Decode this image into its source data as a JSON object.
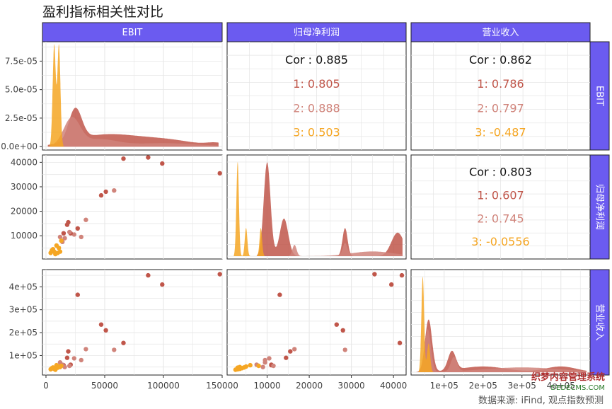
{
  "title": "盈利指标相关性对比",
  "source": "数据来源: iFind, 观点指数预测",
  "watermark": {
    "line1": "织梦内容管理系统",
    "line2": "DEDECMS.COM"
  },
  "colors": {
    "strip_bg": "#6b5bf0",
    "strip_text": "#ffffff",
    "group1": "#c0564a",
    "group2": "#d0847b",
    "group3": "#f5a623",
    "panel_border": "#222222",
    "grid": "#e6e6e6",
    "cor_text": "#111111"
  },
  "chart_data": {
    "type": "scatter",
    "variables": [
      "EBIT",
      "归母净利润",
      "营业收入"
    ],
    "groups": [
      "1",
      "2",
      "3"
    ],
    "correlations": [
      {
        "row": 0,
        "col": 1,
        "overall": "Cor : 0.885",
        "groups": [
          "1: 0.805",
          "2: 0.888",
          "3: 0.503"
        ]
      },
      {
        "row": 0,
        "col": 2,
        "overall": "Cor : 0.862",
        "groups": [
          "1: 0.786",
          "2: 0.797",
          "3: -0.487"
        ]
      },
      {
        "row": 1,
        "col": 2,
        "overall": "Cor : 0.803",
        "groups": [
          "1: 0.607",
          "2: 0.745",
          "3: -0.0556"
        ]
      }
    ],
    "axes": {
      "EBIT": {
        "range": [
          -3000,
          150000
        ],
        "ticks": [
          0,
          50000,
          100000,
          150000
        ],
        "tick_labels": [
          "0",
          "50000",
          "100000",
          "150000"
        ]
      },
      "归母净利润": {
        "range": [
          500,
          43000
        ],
        "ticks": [
          10000,
          20000,
          30000,
          40000
        ],
        "tick_labels": [
          "10000",
          "20000",
          "30000",
          "40000"
        ]
      },
      "营业收入": {
        "range": [
          15000,
          475000
        ],
        "ticks": [
          100000,
          200000,
          300000,
          400000
        ],
        "tick_labels": [
          "1e+05",
          "2e+05",
          "3e+05",
          "4e+05"
        ]
      },
      "EBIT_density": {
        "range": [
          -3e-06,
          9.2e-05
        ],
        "ticks": [
          0,
          2.5e-05,
          5e-05,
          7.5e-05
        ],
        "tick_labels": [
          "0.0e+00",
          "2.5e-05",
          "5.0e-05",
          "7.5e-05"
        ]
      }
    },
    "points": [
      {
        "g": 1,
        "ebit": 148000,
        "profit": 35500,
        "revenue": 455000
      },
      {
        "g": 1,
        "ebit": 87000,
        "profit": 42000,
        "revenue": 450000
      },
      {
        "g": 1,
        "ebit": 99000,
        "profit": 39500,
        "revenue": 410000
      },
      {
        "g": 1,
        "ebit": 66000,
        "profit": 41500,
        "revenue": 155000
      },
      {
        "g": 1,
        "ebit": 47000,
        "profit": 26500,
        "revenue": 235000
      },
      {
        "g": 1,
        "ebit": 51000,
        "profit": 28000,
        "revenue": 210000
      },
      {
        "g": 1,
        "ebit": 27000,
        "profit": 13000,
        "revenue": 365000
      },
      {
        "g": 2,
        "ebit": 58000,
        "profit": 28500,
        "revenue": 125000
      },
      {
        "g": 2,
        "ebit": 34000,
        "profit": 16500,
        "revenue": 128000
      },
      {
        "g": 1,
        "ebit": 19000,
        "profit": 15500,
        "revenue": 118000
      },
      {
        "g": 1,
        "ebit": 18000,
        "profit": 14500,
        "revenue": 90000
      },
      {
        "g": 2,
        "ebit": 30000,
        "profit": 9500,
        "revenue": 80000
      },
      {
        "g": 2,
        "ebit": 24000,
        "profit": 10500,
        "revenue": 88000
      },
      {
        "g": 1,
        "ebit": 21000,
        "profit": 11000,
        "revenue": 60000
      },
      {
        "g": 1,
        "ebit": 15000,
        "profit": 11000,
        "revenue": 58000
      },
      {
        "g": 2,
        "ebit": 20000,
        "profit": 11500,
        "revenue": 55000
      },
      {
        "g": 2,
        "ebit": 12000,
        "profit": 9500,
        "revenue": 70000
      },
      {
        "g": 2,
        "ebit": 16000,
        "profit": 9000,
        "revenue": 50000
      },
      {
        "g": 2,
        "ebit": 14000,
        "profit": 7500,
        "revenue": 60000
      },
      {
        "g": 3,
        "ebit": 13000,
        "profit": 8000,
        "revenue": 55000
      },
      {
        "g": 3,
        "ebit": 9000,
        "profit": 6000,
        "revenue": 58000
      },
      {
        "g": 3,
        "ebit": 11000,
        "profit": 5000,
        "revenue": 52000
      },
      {
        "g": 3,
        "ebit": 6000,
        "profit": 4500,
        "revenue": 48000
      },
      {
        "g": 3,
        "ebit": 7000,
        "profit": 3500,
        "revenue": 42000
      },
      {
        "g": 3,
        "ebit": 10000,
        "profit": 3000,
        "revenue": 47000
      },
      {
        "g": 3,
        "ebit": 4000,
        "profit": 3000,
        "revenue": 40000
      },
      {
        "g": 3,
        "ebit": 5000,
        "profit": 4000,
        "revenue": 45000
      },
      {
        "g": 3,
        "ebit": 12000,
        "profit": 3500,
        "revenue": 50000
      },
      {
        "g": 3,
        "ebit": 8000,
        "profit": 2500,
        "revenue": 38000
      }
    ],
    "densities": {
      "EBIT": [
        {
          "g": 1,
          "peaks": [
            [
              25000,
              2.8e-05,
              5500
            ],
            [
              50000,
              1e-05,
              25000
            ],
            [
              100000,
              6e-06,
              25000
            ],
            [
              145000,
              2.5e-06,
              8000
            ]
          ]
        },
        {
          "g": 2,
          "peaks": [
            [
              22000,
              2.4e-05,
              7000
            ],
            [
              45000,
              6e-06,
              15000
            ],
            [
              100000,
              3e-06,
              30000
            ]
          ]
        },
        {
          "g": 3,
          "peaks": [
            [
              7000,
              8.9e-05,
              1300
            ],
            [
              11000,
              8.9e-05,
              1300
            ]
          ]
        }
      ],
      "归母净利润": [
        {
          "g": 1,
          "peaks": [
            [
              10000,
              1.0,
              800
            ],
            [
              14000,
              0.4,
              1000
            ],
            [
              28500,
              0.3,
              600
            ],
            [
              41000,
              0.25,
              1500
            ]
          ]
        },
        {
          "g": 2,
          "peaks": [
            [
              16500,
              0.12,
              500
            ],
            [
              28500,
              0.12,
              500
            ],
            [
              35000,
              0.05,
              5000
            ]
          ]
        },
        {
          "g": 3,
          "peaks": [
            [
              3000,
              1.0,
              300
            ],
            [
              5000,
              0.3,
              300
            ],
            [
              8500,
              0.3,
              300
            ]
          ]
        }
      ],
      "营业收入": [
        {
          "g": 1,
          "peaks": [
            [
              60000,
              0.55,
              9000
            ],
            [
              120000,
              0.2,
              10000
            ],
            [
              200000,
              0.06,
              60000
            ],
            [
              400000,
              0.06,
              40000
            ]
          ]
        },
        {
          "g": 2,
          "peaks": [
            [
              58000,
              0.45,
              8000
            ],
            [
              125000,
              0.15,
              8000
            ],
            [
              300000,
              0.05,
              100000
            ]
          ]
        },
        {
          "g": 3,
          "peaks": [
            [
              45000,
              1.0,
              3500
            ],
            [
              60000,
              0.3,
              4000
            ]
          ]
        }
      ]
    }
  }
}
